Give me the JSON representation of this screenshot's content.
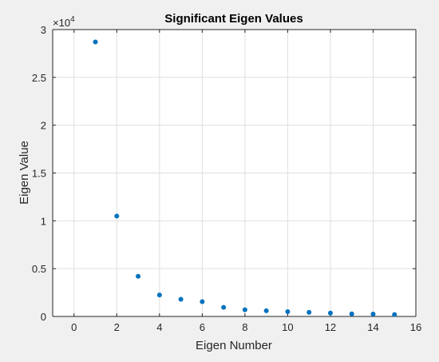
{
  "chart_data": {
    "type": "scatter",
    "title": "Significant Eigen Values",
    "xlabel": "Eigen Number",
    "ylabel": "Eigen Value",
    "xlim": [
      -1,
      16
    ],
    "ylim": [
      0,
      30000
    ],
    "xticks": [
      0,
      2,
      4,
      6,
      8,
      10,
      12,
      14,
      16
    ],
    "xtick_labels": [
      "0",
      "2",
      "4",
      "6",
      "8",
      "10",
      "12",
      "14",
      "16"
    ],
    "yticks": [
      0,
      5000,
      10000,
      15000,
      20000,
      25000,
      30000
    ],
    "ytick_labels": [
      "0",
      "0.5",
      "1",
      "1.5",
      "2",
      "2.5",
      "3"
    ],
    "y_multiplier_base": "×10",
    "y_multiplier_exponent": "4",
    "grid": true,
    "marker_color": "#0072bd",
    "series": [
      {
        "x": [
          1,
          2,
          3,
          4,
          5,
          6,
          7,
          8,
          9,
          10,
          11,
          12,
          13,
          14,
          15
        ],
        "y": [
          28700,
          10500,
          4200,
          2250,
          1800,
          1550,
          950,
          700,
          600,
          500,
          430,
          360,
          270,
          250,
          200
        ]
      }
    ]
  }
}
